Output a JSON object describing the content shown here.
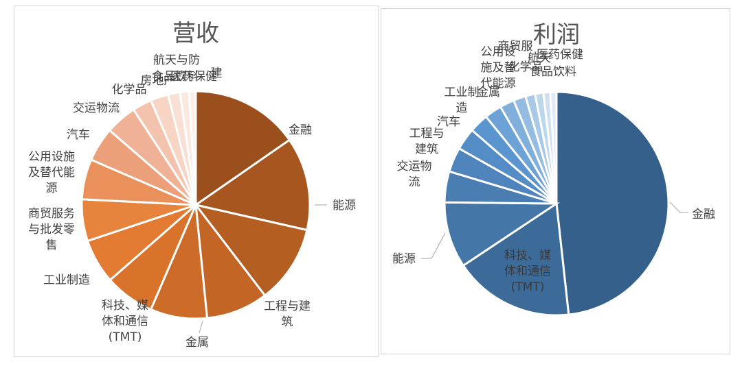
{
  "chart_data": [
    {
      "type": "pie",
      "title": "营收",
      "slices": [
        {
          "label": "金融",
          "value": 14.5,
          "color": "#9b4f1d"
        },
        {
          "label": "能源",
          "value": 12.5,
          "color": "#a85620"
        },
        {
          "label": "工程与建筑",
          "value": 10.5,
          "color": "#b55e22"
        },
        {
          "label": "金属",
          "value": 8.3,
          "color": "#c26525"
        },
        {
          "label": "科技、媒体和通信(TMT)",
          "value": 7.6,
          "color": "#cd6c28"
        },
        {
          "label": "工业制造",
          "value": 6.7,
          "color": "#d9722a"
        },
        {
          "label": "商贸服务与批发零售",
          "value": 6.0,
          "color": "#e27a32"
        },
        {
          "label": "公用设施及替代能源",
          "value": 5.6,
          "color": "#e6843d"
        },
        {
          "label": "汽车",
          "value": 5.4,
          "color": "#e9905b"
        },
        {
          "label": "交运物流",
          "value": 4.6,
          "color": "#eca07a"
        },
        {
          "label": "化学品",
          "value": 4.2,
          "color": "#efb297"
        },
        {
          "label": "房地产",
          "value": 2.6,
          "color": "#f3c3ae"
        },
        {
          "label": "航天与防务",
          "value": 2.4,
          "color": "#f7d4c4"
        },
        {
          "label": "食品饮料",
          "value": 1.6,
          "color": "#f9e0d4"
        },
        {
          "label": "医药保健",
          "value": 1.2,
          "color": "#fbe9e1"
        },
        {
          "label": "建",
          "value": 0.9,
          "color": "#fcf0ea"
        }
      ]
    },
    {
      "type": "pie",
      "title": "利润",
      "slices": [
        {
          "label": "金融",
          "value": 48.6,
          "color": "#35608b"
        },
        {
          "label": "科技、媒体和通信(TMT)",
          "value": 17.5,
          "color": "#3c6b99"
        },
        {
          "label": "能源",
          "value": 9.6,
          "color": "#4476a8"
        },
        {
          "label": "交运物流",
          "value": 4.5,
          "color": "#4a7db2"
        },
        {
          "label": "工程与建筑",
          "value": 3.6,
          "color": "#4f85bc"
        },
        {
          "label": "汽车",
          "value": 3.2,
          "color": "#548dc6"
        },
        {
          "label": "工业制造",
          "value": 2.8,
          "color": "#5a95cf"
        },
        {
          "label": "金属",
          "value": 2.5,
          "color": "#6da2d6"
        },
        {
          "label": "公用设施及替代能源",
          "value": 2.1,
          "color": "#80afdc"
        },
        {
          "label": "商贸服务",
          "value": 1.8,
          "color": "#94bce2"
        },
        {
          "label": "化学品",
          "value": 1.4,
          "color": "#a8c9e7"
        },
        {
          "label": "航天",
          "value": 1.2,
          "color": "#bcd6ec"
        },
        {
          "label": "食品饮料",
          "value": 1.0,
          "color": "#cfe1f1"
        },
        {
          "label": "医药保健",
          "value": 0.9,
          "color": "#e0ebf6"
        }
      ]
    }
  ]
}
